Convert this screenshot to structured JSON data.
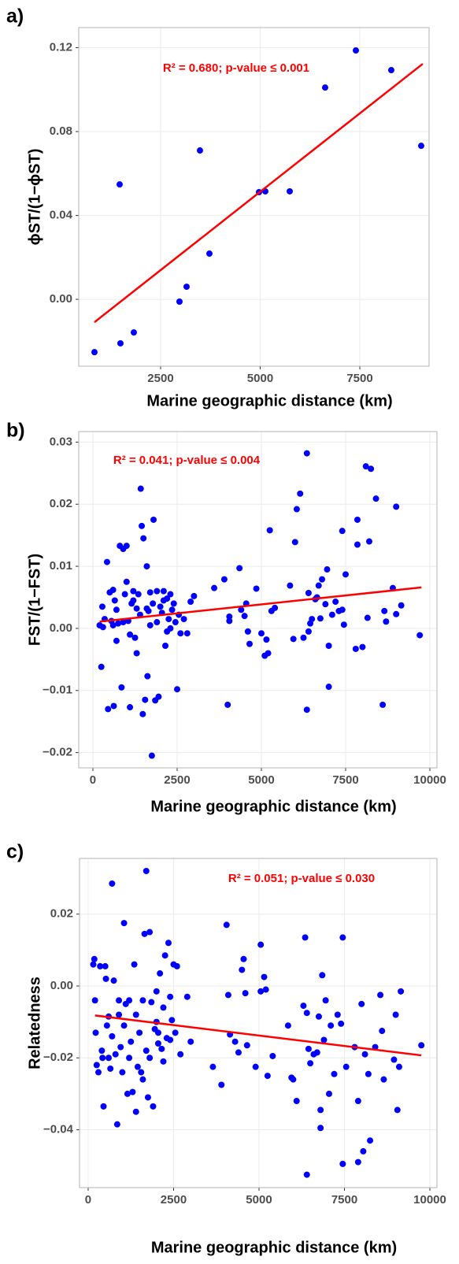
{
  "chart_data": [
    {
      "type": "scatter",
      "panel_label": "a)",
      "annotation": "R² = 0.680; p-value ≤ 0.001",
      "x_label": "Marine geographic distance (km)",
      "y_label": "ϕST/(1−ϕST)",
      "xlim": [
        445,
        9239
      ],
      "ylim": [
        -0.0319,
        0.1296
      ],
      "xticks": [
        2500,
        5000,
        7500
      ],
      "yticks": [
        {
          "value": 0,
          "label": "0.00"
        },
        0.04,
        0.08,
        0.12
      ],
      "grid": true,
      "color": "#0000ff",
      "x": [
        840,
        1492,
        1472,
        1828,
        2974,
        3152,
        3488,
        3725,
        4970,
        5128,
        5741,
        6630,
        7401,
        8290,
        9041
      ],
      "values": [
        -0.0252,
        -0.021,
        0.0548,
        -0.0158,
        -0.0011,
        0.006,
        0.071,
        0.0218,
        0.0511,
        0.0515,
        0.0515,
        0.101,
        0.1187,
        0.1093,
        0.0732
      ],
      "fit": {
        "color": "#ff0000",
        "x": [
          840,
          9080
        ],
        "y": [
          -0.0109,
          0.1123
        ]
      }
    },
    {
      "type": "scatter",
      "panel_label": "b)",
      "annotation": "R² = 0.041; p-value ≤ 0.004",
      "x_label": "Marine geographic distance (km)",
      "y_label": "FST/(1−FST)",
      "xlim": [
        -420,
        10210
      ],
      "ylim": [
        -0.02246,
        0.0317
      ],
      "xticks": [
        0,
        2500,
        5000,
        7500,
        10000
      ],
      "yticks": [
        {
          "value": -0.02,
          "label": "−0.02"
        },
        {
          "value": -0.01,
          "label": "−0.01"
        },
        {
          "value": 0,
          "label": "0.00"
        },
        0.01,
        0.02,
        0.03
      ],
      "grid": true,
      "color": "#0000ff",
      "x": [
        200,
        250,
        280,
        300,
        350,
        420,
        450,
        500,
        550,
        600,
        620,
        650,
        700,
        750,
        800,
        850,
        900,
        950,
        1000,
        1050,
        1100,
        1150,
        1200,
        1250,
        1300,
        1350,
        1400,
        1420,
        1450,
        1480,
        1500,
        1550,
        1600,
        1620,
        1650,
        1700,
        1750,
        1780,
        1800,
        1850,
        1900,
        1950,
        2000,
        2050,
        2100,
        2150,
        2200,
        2250,
        2300,
        2350,
        2400,
        2450,
        2500,
        2550,
        2600,
        2700,
        2900,
        3000,
        1300,
        1600,
        900,
        1100,
        700,
        2200,
        2800,
        1900,
        1200,
        1000,
        600,
        2100,
        1700,
        2300,
        3600,
        3900,
        4000,
        4050,
        4050,
        4350,
        4400,
        4500,
        4550,
        4600,
        4650,
        4850,
        5000,
        5100,
        5150,
        5200,
        5250,
        5400,
        5850,
        5950,
        6000,
        6050,
        6150,
        6250,
        6350,
        6350,
        6400,
        6450,
        6500,
        6600,
        6650,
        6700,
        6750,
        6800,
        6900,
        6950,
        7000,
        7000,
        7100,
        7200,
        7300,
        7400,
        7450,
        7500,
        7800,
        7850,
        7850,
        8000,
        8100,
        8150,
        8200,
        8250,
        8400,
        8600,
        8650,
        8700,
        8900,
        9000,
        9000,
        9150,
        9700,
        7400,
        6400,
        5300
      ],
      "values": [
        0.0005,
        -0.0062,
        0.0035,
        0.0002,
        0.0015,
        0.0107,
        -0.013,
        0.0058,
        0.0012,
        0.0062,
        -0.0125,
        0.0045,
        0.003,
        0.0008,
        0.0133,
        -0.0095,
        0.0128,
        0.0055,
        0.0133,
        0.0012,
        -0.0127,
        0.004,
        0.006,
        -0.0015,
        0.0032,
        0.0055,
        0.0022,
        0.0225,
        0.0165,
        -0.0138,
        0.0145,
        -0.0115,
        0.01,
        -0.0077,
        0.0028,
        0.0058,
        -0.0205,
        0.004,
        0.0175,
        -0.0116,
        0.006,
        -0.011,
        0.0035,
        0.0025,
        0.006,
        -0.0028,
        0.0048,
        0.0015,
        0.0055,
        0.003,
        0.004,
        0.001,
        -0.0098,
        0.0022,
        -0.0008,
        0.0015,
        0.0043,
        0.0052,
        -0.004,
        0.0032,
        0.001,
        -0.001,
        -0.002,
        -0.0005,
        -0.0008,
        0.001,
        0.0045,
        0.0075,
        0.0005,
        0.0045,
        0.0005,
        0,
        0.0065,
        0.0079,
        -0.0123,
        0.0012,
        0.0019,
        0.0097,
        0.003,
        0.002,
        0.004,
        -0.0005,
        -0.0025,
        0.0064,
        -0.0008,
        -0.0044,
        -0.0018,
        -0.004,
        0.0158,
        0.0033,
        0.0069,
        -0.0017,
        0.0139,
        0.0192,
        0.0217,
        -0.0015,
        0.0282,
        -0.0131,
        0.0057,
        0.0008,
        0.0015,
        0.0047,
        0.005,
        0.0069,
        0.0016,
        0.0079,
        0.0039,
        0.0095,
        -0.0094,
        -0.0028,
        0.0022,
        0.0043,
        0.0028,
        0.0157,
        0.0006,
        0.0087,
        -0.0033,
        0.0175,
        0.0135,
        -0.003,
        0.0261,
        0.0017,
        0.014,
        0.0257,
        0.0209,
        -0.0123,
        0.0028,
        0.0011,
        0.0065,
        0.0196,
        0.0023,
        0.0037,
        -0.0011,
        0.003,
        -0.0005,
        0.0028
      ],
      "fit": {
        "color": "#ff0000",
        "x": [
          200,
          9750
        ],
        "y": [
          0.0011,
          0.0066
        ]
      }
    },
    {
      "type": "scatter",
      "panel_label": "c)",
      "annotation": "R² = 0.051; p-value ≤ 0.030",
      "x_label": "Marine geographic distance (km)",
      "y_label": "Relatedness",
      "xlim": [
        -253,
        10207
      ],
      "ylim": [
        -0.0561,
        0.0355
      ],
      "xticks": [
        0,
        2500,
        5000,
        7500,
        10000
      ],
      "yticks": [
        {
          "value": -0.04,
          "label": "−0.04"
        },
        {
          "value": -0.02,
          "label": "−0.02"
        },
        {
          "value": 0,
          "label": "0.00"
        },
        0.02
      ],
      "grid": true,
      "color": "#0000ff",
      "x": [
        150,
        180,
        200,
        220,
        250,
        300,
        350,
        400,
        420,
        450,
        500,
        520,
        550,
        600,
        650,
        700,
        750,
        800,
        850,
        900,
        950,
        1000,
        1050,
        1100,
        1150,
        1200,
        1250,
        1300,
        1350,
        1400,
        1450,
        1500,
        1550,
        1600,
        1650,
        1700,
        1750,
        1800,
        1850,
        1900,
        1950,
        2000,
        2050,
        2100,
        2150,
        2200,
        2250,
        2300,
        2350,
        2400,
        2450,
        2500,
        2550,
        2600,
        2700,
        2900,
        3000,
        1050,
        1200,
        1600,
        1800,
        2000,
        2200,
        2400,
        700,
        1400,
        1700,
        2050,
        900,
        600,
        3650,
        3900,
        4050,
        4100,
        4150,
        4300,
        4400,
        4500,
        4550,
        4600,
        4650,
        4900,
        5050,
        5050,
        5150,
        5200,
        5250,
        5400,
        5850,
        5950,
        6000,
        6100,
        6300,
        6350,
        6400,
        6400,
        6450,
        6500,
        6600,
        6700,
        6750,
        6800,
        6800,
        6850,
        6900,
        6950,
        7050,
        7100,
        7200,
        7300,
        7400,
        7450,
        7450,
        7550,
        7800,
        7900,
        7900,
        8000,
        8050,
        8100,
        8200,
        8250,
        8400,
        8550,
        8600,
        8650,
        8950,
        9000,
        9050,
        9100,
        9150,
        9750
      ],
      "values": [
        0.006,
        0.0075,
        -0.004,
        -0.013,
        -0.022,
        -0.024,
        0.0055,
        -0.018,
        -0.02,
        -0.0335,
        0.0055,
        0.002,
        -0.011,
        -0.0085,
        -0.023,
        0.0285,
        0.0015,
        -0.019,
        -0.0385,
        -0.004,
        -0.017,
        -0.024,
        0.0175,
        -0.005,
        -0.03,
        -0.004,
        -0.0155,
        -0.0295,
        0.006,
        -0.035,
        -0.0225,
        -0.013,
        -0.024,
        -0.004,
        0.0145,
        0.032,
        -0.031,
        0.015,
        -0.0045,
        -0.0335,
        -0.012,
        -0.0015,
        -0.016,
        0.0035,
        -0.0175,
        -0.006,
        0.0085,
        -0.0145,
        0.012,
        -0.003,
        -0.0095,
        0.006,
        -0.013,
        0.0055,
        -0.019,
        -0.003,
        -0.0155,
        -0.011,
        -0.02,
        -0.026,
        -0.02,
        -0.01,
        -0.021,
        -0.015,
        -0.014,
        -0.008,
        -0.018,
        -0.013,
        -0.008,
        -0.02,
        -0.0225,
        -0.0275,
        0.017,
        -0.0025,
        -0.0135,
        -0.0155,
        -0.0185,
        0.0045,
        0.0075,
        -0.002,
        -0.0165,
        -0.0225,
        -0.0015,
        0.0115,
        0.0025,
        -0.001,
        -0.025,
        -0.0195,
        -0.011,
        -0.0255,
        -0.026,
        -0.032,
        -0.0055,
        0.0135,
        -0.0075,
        -0.0525,
        -0.0175,
        -0.0215,
        -0.019,
        -0.0185,
        -0.0085,
        -0.0345,
        -0.0395,
        0.003,
        -0.015,
        -0.004,
        -0.03,
        -0.011,
        -0.0245,
        -0.008,
        -0.0105,
        0.0135,
        -0.0495,
        -0.0225,
        -0.017,
        -0.032,
        -0.049,
        -0.005,
        -0.046,
        -0.019,
        -0.0245,
        -0.043,
        -0.017,
        -0.0025,
        -0.0125,
        -0.026,
        -0.0205,
        -0.008,
        -0.0345,
        -0.0225,
        -0.0015,
        -0.0165
      ],
      "fit": {
        "color": "#ff0000",
        "x": [
          200,
          9750
        ],
        "y": [
          -0.0082,
          -0.0193
        ]
      }
    }
  ]
}
